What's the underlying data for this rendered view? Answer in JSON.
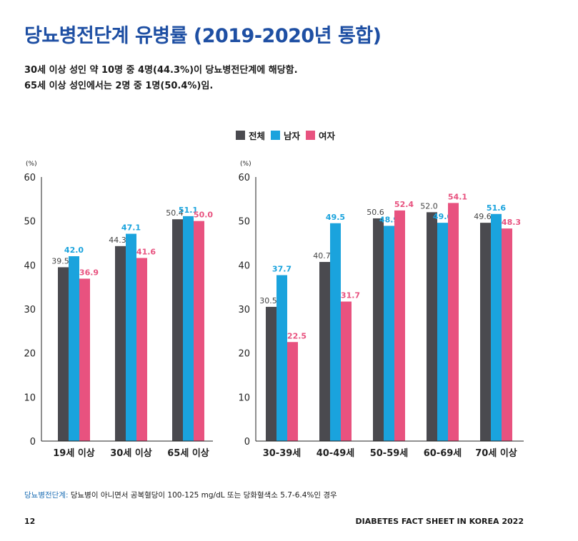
{
  "title": "당뇨병전단계 유병률 (2019-2020년 통합)",
  "summary": [
    "30세 이상 성인 약 10명 중 4명(44.3%)이 당뇨병전단계에 해당함.",
    "65세 이상 성인에서는 2명 중 1명(50.4%)임."
  ],
  "legend": [
    {
      "label": "전체",
      "color": "#4a4a4f"
    },
    {
      "label": "남자",
      "color": "#1aa3dd"
    },
    {
      "label": "여자",
      "color": "#e8527f"
    }
  ],
  "chart_data": [
    {
      "type": "bar",
      "ylabel": "(%)",
      "ylim": [
        0,
        60
      ],
      "yticks": [
        0,
        10,
        20,
        30,
        40,
        50,
        60
      ],
      "categories": [
        "19세 이상",
        "30세 이상",
        "65세 이상"
      ],
      "series": [
        {
          "name": "전체",
          "values": [
            39.5,
            44.3,
            50.4
          ]
        },
        {
          "name": "남자",
          "values": [
            42.0,
            47.1,
            51.1
          ]
        },
        {
          "name": "여자",
          "values": [
            36.9,
            41.6,
            50.0
          ]
        }
      ],
      "grid": false,
      "legend_position": "top"
    },
    {
      "type": "bar",
      "ylabel": "(%)",
      "ylim": [
        0,
        60
      ],
      "yticks": [
        0,
        10,
        20,
        30,
        40,
        50,
        60
      ],
      "categories": [
        "30-39세",
        "40-49세",
        "50-59세",
        "60-69세",
        "70세 이상"
      ],
      "series": [
        {
          "name": "전체",
          "values": [
            30.5,
            40.7,
            50.6,
            52.0,
            49.6
          ]
        },
        {
          "name": "남자",
          "values": [
            37.7,
            49.5,
            48.9,
            49.6,
            51.6
          ]
        },
        {
          "name": "여자",
          "values": [
            22.5,
            31.7,
            52.4,
            54.1,
            48.3
          ]
        }
      ],
      "grid": false,
      "legend_position": "top"
    }
  ],
  "footnote": {
    "term": "당뇨병전단계:",
    "text": " 당뇨병이 아니면서 공복혈당이 100-125 mg/dL 또는 당화혈색소 5.7-6.4%인 경우"
  },
  "page_number": "12",
  "doc_title": "DIABETES FACT SHEET IN KOREA 2022"
}
